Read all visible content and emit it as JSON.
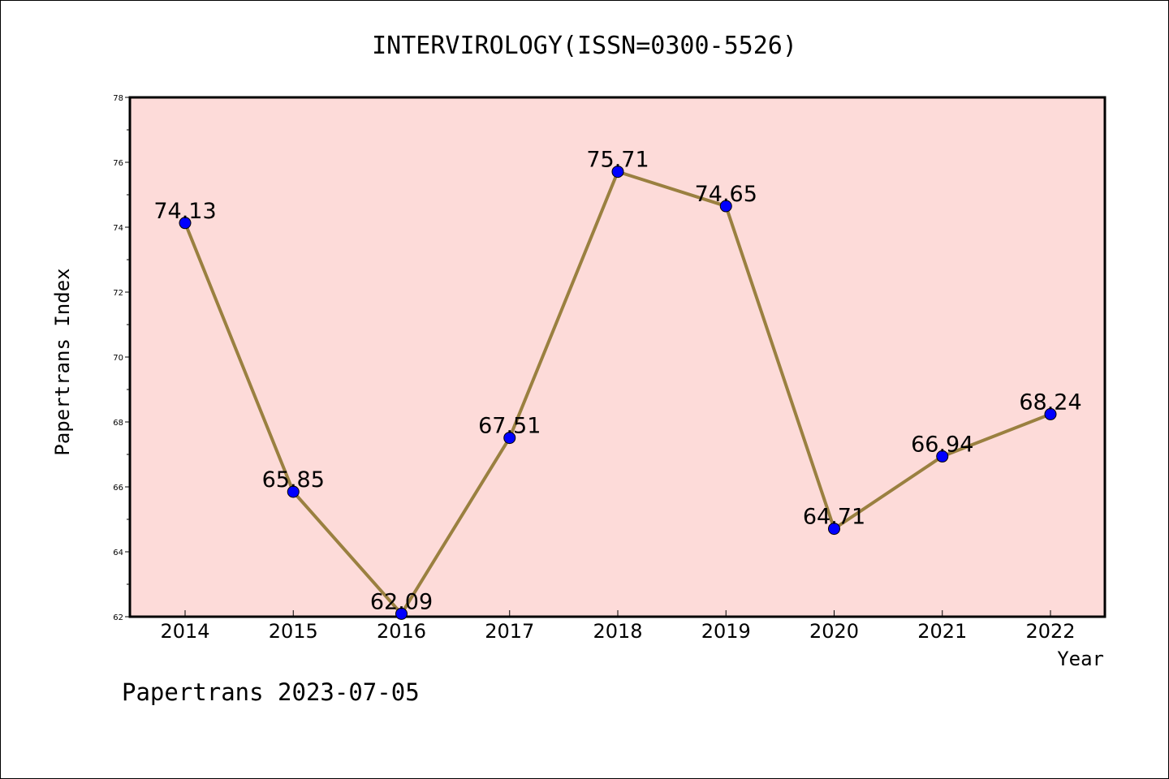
{
  "chart_data": {
    "type": "line",
    "title": "INTERVIROLOGY(ISSN=0300-5526)",
    "xlabel": "Year",
    "ylabel": "Papertrans Index",
    "categories": [
      "2014",
      "2015",
      "2016",
      "2017",
      "2018",
      "2019",
      "2020",
      "2021",
      "2022"
    ],
    "series": [
      {
        "values": [
          74.13,
          65.85,
          62.09,
          67.51,
          75.71,
          74.65,
          64.71,
          66.94,
          68.24
        ],
        "labels": [
          "74.13",
          "65.85",
          "62.09",
          "67.51",
          "75.71",
          "74.65",
          "64.71",
          "66.94",
          "68.24"
        ]
      }
    ],
    "ylim": [
      62,
      78
    ],
    "yticks": [
      "62",
      "64",
      "66",
      "68",
      "70",
      "72",
      "74",
      "76",
      "78"
    ],
    "grid": false,
    "legend": "none",
    "colors": {
      "plot_background": "#fddbd9",
      "line": "#9a8040",
      "marker": "#0000ff"
    }
  },
  "footer": {
    "text": "Papertrans 2023-07-05"
  }
}
